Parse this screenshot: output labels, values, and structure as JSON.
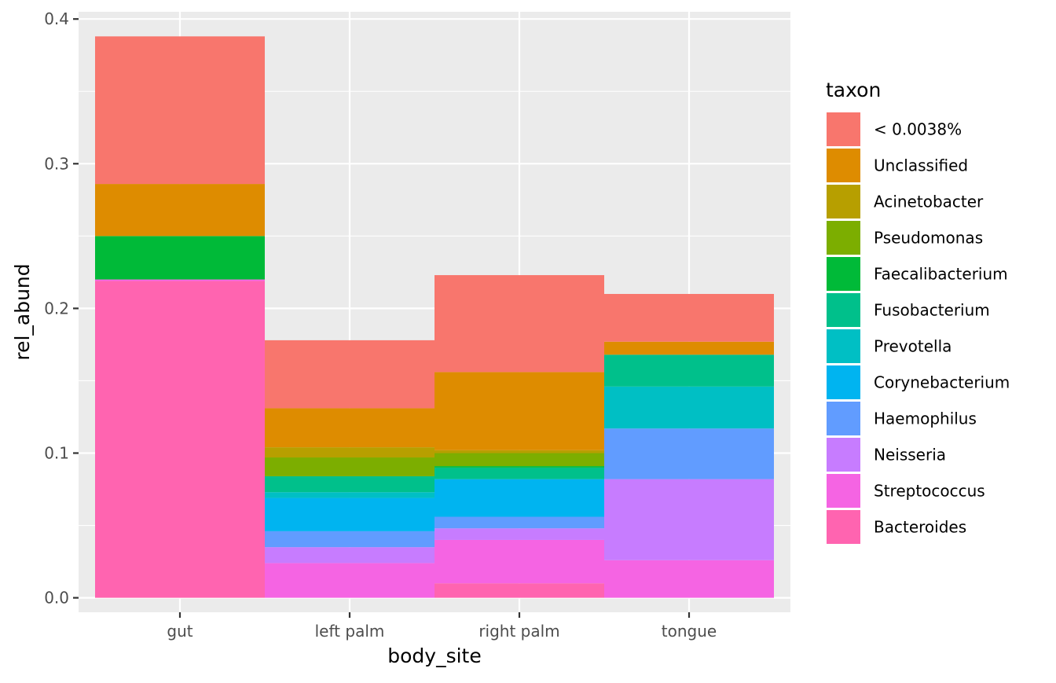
{
  "chart_data": {
    "type": "bar",
    "stacked": true,
    "xlabel": "body_site",
    "ylabel": "rel_abund",
    "categories": [
      "gut",
      "left palm",
      "right palm",
      "tongue"
    ],
    "ylim": [
      -0.01,
      0.405
    ],
    "y_ticks": [
      "0.0",
      "0.1",
      "0.2",
      "0.3",
      "0.4"
    ],
    "grid": true,
    "legend": {
      "title": "taxon",
      "position": "right"
    },
    "series": [
      {
        "name": "< 0.0038%",
        "color": "#F8766D",
        "values": [
          0.102,
          0.047,
          0.067,
          0.033
        ]
      },
      {
        "name": "Unclassified",
        "color": "#DE8C00",
        "values": [
          0.036,
          0.027,
          0.054,
          0.009
        ]
      },
      {
        "name": "Acinetobacter",
        "color": "#B79F00",
        "values": [
          0.0,
          0.007,
          0.002,
          0.0
        ]
      },
      {
        "name": "Pseudomonas",
        "color": "#7CAE00",
        "values": [
          0.0,
          0.013,
          0.009,
          0.0
        ]
      },
      {
        "name": "Faecalibacterium",
        "color": "#00BA38",
        "values": [
          0.03,
          0.0,
          0.001,
          0.0
        ]
      },
      {
        "name": "Fusobacterium",
        "color": "#00C08B",
        "values": [
          0.0,
          0.011,
          0.008,
          0.022
        ]
      },
      {
        "name": "Prevotella",
        "color": "#00BFC4",
        "values": [
          0.0,
          0.004,
          0.0,
          0.029
        ]
      },
      {
        "name": "Corynebacterium",
        "color": "#00B4F0",
        "values": [
          0.0,
          0.023,
          0.026,
          0.0
        ]
      },
      {
        "name": "Haemophilus",
        "color": "#619CFF",
        "values": [
          0.0,
          0.011,
          0.008,
          0.035
        ]
      },
      {
        "name": "Neisseria",
        "color": "#C77CFF",
        "values": [
          0.0,
          0.011,
          0.008,
          0.056
        ]
      },
      {
        "name": "Streptococcus",
        "color": "#F564E3",
        "values": [
          0.001,
          0.024,
          0.03,
          0.026
        ]
      },
      {
        "name": "Bacteroides",
        "color": "#FF64B0",
        "values": [
          0.219,
          0.0,
          0.01,
          0.0
        ]
      }
    ]
  }
}
